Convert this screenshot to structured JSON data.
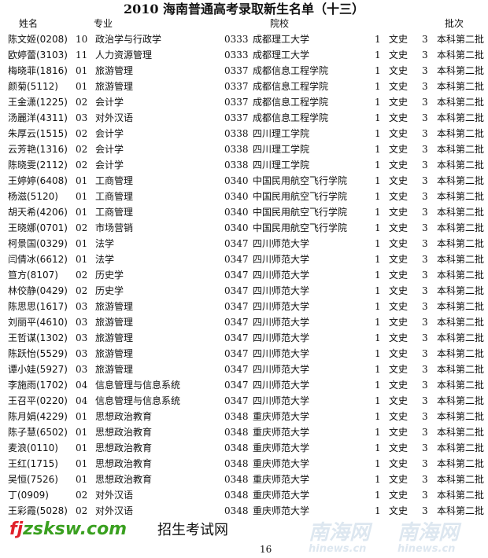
{
  "title": "2010 海南普通高考录取新生名单（十三）",
  "headers": {
    "name": "姓名",
    "major": "专业",
    "school": "院校",
    "batch": "批次"
  },
  "rows": [
    {
      "name": "陈文姬(0208)",
      "code": "10",
      "major": "政治学与行政学",
      "scode": "0333",
      "school": "成都理工大学",
      "count": "1",
      "track": "文史",
      "lvl": "3",
      "batch": "本科第二批"
    },
    {
      "name": "欧婷蕾(3103)",
      "code": "11",
      "major": "人力资源管理",
      "scode": "0333",
      "school": "成都理工大学",
      "count": "1",
      "track": "文史",
      "lvl": "3",
      "batch": "本科第二批"
    },
    {
      "name": "梅晓菲(1816)",
      "code": "01",
      "major": "旅游管理",
      "scode": "0337",
      "school": "成都信息工程学院",
      "count": "1",
      "track": "文史",
      "lvl": "3",
      "batch": "本科第二批"
    },
    {
      "name": "颜菊(5112)",
      "code": "01",
      "major": "旅游管理",
      "scode": "0337",
      "school": "成都信息工程学院",
      "count": "1",
      "track": "文史",
      "lvl": "3",
      "batch": "本科第二批"
    },
    {
      "name": "王金潇(1225)",
      "code": "02",
      "major": "会计学",
      "scode": "0337",
      "school": "成都信息工程学院",
      "count": "1",
      "track": "文史",
      "lvl": "3",
      "batch": "本科第二批"
    },
    {
      "name": "汤麗洋(4311)",
      "code": "03",
      "major": "对外汉语",
      "scode": "0337",
      "school": "成都信息工程学院",
      "count": "1",
      "track": "文史",
      "lvl": "3",
      "batch": "本科第二批"
    },
    {
      "name": "朱厚云(1515)",
      "code": "02",
      "major": "会计学",
      "scode": "0338",
      "school": "四川理工学院",
      "count": "1",
      "track": "文史",
      "lvl": "3",
      "batch": "本科第二批"
    },
    {
      "name": "云芳艳(1316)",
      "code": "02",
      "major": "会计学",
      "scode": "0338",
      "school": "四川理工学院",
      "count": "1",
      "track": "文史",
      "lvl": "3",
      "batch": "本科第二批"
    },
    {
      "name": "陈晓雯(2112)",
      "code": "02",
      "major": "会计学",
      "scode": "0338",
      "school": "四川理工学院",
      "count": "1",
      "track": "文史",
      "lvl": "3",
      "batch": "本科第二批"
    },
    {
      "name": "王婷婷(6408)",
      "code": "01",
      "major": "工商管理",
      "scode": "0340",
      "school": "中国民用航空飞行学院",
      "count": "1",
      "track": "文史",
      "lvl": "3",
      "batch": "本科第二批"
    },
    {
      "name": "杨滋(5120)",
      "code": "01",
      "major": "工商管理",
      "scode": "0340",
      "school": "中国民用航空飞行学院",
      "count": "1",
      "track": "文史",
      "lvl": "3",
      "batch": "本科第二批"
    },
    {
      "name": "胡天希(4206)",
      "code": "01",
      "major": "工商管理",
      "scode": "0340",
      "school": "中国民用航空飞行学院",
      "count": "1",
      "track": "文史",
      "lvl": "3",
      "batch": "本科第二批"
    },
    {
      "name": "王晓娜(0701)",
      "code": "02",
      "major": "市场营销",
      "scode": "0340",
      "school": "中国民用航空飞行学院",
      "count": "1",
      "track": "文史",
      "lvl": "3",
      "batch": "本科第二批"
    },
    {
      "name": "柯景国(0329)",
      "code": "01",
      "major": "法学",
      "scode": "0347",
      "school": "四川师范大学",
      "count": "1",
      "track": "文史",
      "lvl": "3",
      "batch": "本科第二批"
    },
    {
      "name": "闫倩冰(6612)",
      "code": "01",
      "major": "法学",
      "scode": "0347",
      "school": "四川师范大学",
      "count": "1",
      "track": "文史",
      "lvl": "3",
      "batch": "本科第二批"
    },
    {
      "name": "笪方(8107)",
      "code": "02",
      "major": "历史学",
      "scode": "0347",
      "school": "四川师范大学",
      "count": "1",
      "track": "文史",
      "lvl": "3",
      "batch": "本科第二批"
    },
    {
      "name": "林佼静(0429)",
      "code": "02",
      "major": "历史学",
      "scode": "0347",
      "school": "四川师范大学",
      "count": "1",
      "track": "文史",
      "lvl": "3",
      "batch": "本科第二批"
    },
    {
      "name": "陈思思(1617)",
      "code": "03",
      "major": "旅游管理",
      "scode": "0347",
      "school": "四川师范大学",
      "count": "1",
      "track": "文史",
      "lvl": "3",
      "batch": "本科第二批"
    },
    {
      "name": "刘丽平(4610)",
      "code": "03",
      "major": "旅游管理",
      "scode": "0347",
      "school": "四川师范大学",
      "count": "1",
      "track": "文史",
      "lvl": "3",
      "batch": "本科第二批"
    },
    {
      "name": "王哲谋(1302)",
      "code": "03",
      "major": "旅游管理",
      "scode": "0347",
      "school": "四川师范大学",
      "count": "1",
      "track": "文史",
      "lvl": "3",
      "batch": "本科第二批"
    },
    {
      "name": "陈跃怡(5529)",
      "code": "03",
      "major": "旅游管理",
      "scode": "0347",
      "school": "四川师范大学",
      "count": "1",
      "track": "文史",
      "lvl": "3",
      "batch": "本科第二批"
    },
    {
      "name": "谭小娃(5927)",
      "code": "03",
      "major": "旅游管理",
      "scode": "0347",
      "school": "四川师范大学",
      "count": "1",
      "track": "文史",
      "lvl": "3",
      "batch": "本科第二批"
    },
    {
      "name": "李施雨(1702)",
      "code": "04",
      "major": "信息管理与信息系统",
      "scode": "0347",
      "school": "四川师范大学",
      "count": "1",
      "track": "文史",
      "lvl": "3",
      "batch": "本科第二批"
    },
    {
      "name": "王召平(0220)",
      "code": "04",
      "major": "信息管理与信息系统",
      "scode": "0347",
      "school": "四川师范大学",
      "count": "1",
      "track": "文史",
      "lvl": "3",
      "batch": "本科第二批"
    },
    {
      "name": "陈月娟(4229)",
      "code": "01",
      "major": "思想政治教育",
      "scode": "0348",
      "school": "重庆师范大学",
      "count": "1",
      "track": "文史",
      "lvl": "3",
      "batch": "本科第二批"
    },
    {
      "name": "陈子慧(6502)",
      "code": "01",
      "major": "思想政治教育",
      "scode": "0348",
      "school": "重庆师范大学",
      "count": "1",
      "track": "文史",
      "lvl": "3",
      "batch": "本科第二批"
    },
    {
      "name": "麦浪(0110)",
      "code": "01",
      "major": "思想政治教育",
      "scode": "0348",
      "school": "重庆师范大学",
      "count": "1",
      "track": "文史",
      "lvl": "3",
      "batch": "本科第二批"
    },
    {
      "name": "王红(1715)",
      "code": "01",
      "major": "思想政治教育",
      "scode": "0348",
      "school": "重庆师范大学",
      "count": "1",
      "track": "文史",
      "lvl": "3",
      "batch": "本科第二批"
    },
    {
      "name": "吴恒(7526)",
      "code": "01",
      "major": "思想政治教育",
      "scode": "0348",
      "school": "重庆师范大学",
      "count": "1",
      "track": "文史",
      "lvl": "3",
      "batch": "本科第二批"
    },
    {
      "name": "丁(0909)",
      "code": "02",
      "major": "对外汉语",
      "scode": "0348",
      "school": "重庆师范大学",
      "count": "1",
      "track": "文史",
      "lvl": "3",
      "batch": "本科第二批"
    },
    {
      "name": "王彩霞(5028)",
      "code": "02",
      "major": "对外汉语",
      "scode": "0348",
      "school": "重庆师范大学",
      "count": "1",
      "track": "文史",
      "lvl": "3",
      "batch": "本科第二批"
    }
  ],
  "page_number": "16",
  "watermarks": {
    "hinews_cn": "南海网",
    "hinews_en": "hinews.cn",
    "site": "fjzsksw.com",
    "site_cn": "招生考试网"
  },
  "colors": {
    "watermark_blue": "#4a7fb0",
    "site_red": "#e0202a",
    "site_green": "#3aa020"
  }
}
